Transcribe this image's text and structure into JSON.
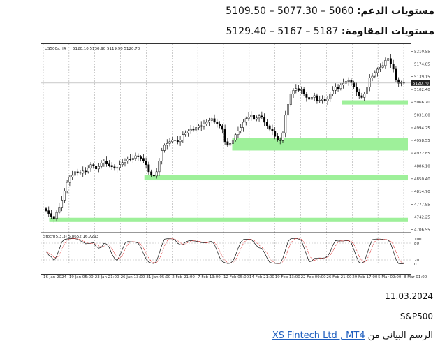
{
  "header": {
    "support_label": "مستويات الدعم:",
    "support_values": "5060 – 5077.30 – 5109.50",
    "resistance_label": "مستويات المقاومة:",
    "resistance_values": "5187 – 5167 – 5129.40"
  },
  "chart_header": {
    "symbol_info": "US500s,H4",
    "ohlc": "5120.10 5130.90 5119.90 5120.70",
    "stoch_label": "Stoch(5,3,3) 5.8652 16.7293"
  },
  "chart_data": {
    "type": "candlestick",
    "title": "",
    "x_ticks": [
      "16 Jan 2024",
      "19 Jan 05:00",
      "23 Jan 21:00",
      "26 Jan 13:00",
      "31 Jan 05:00",
      "2 Feb 21:00",
      "7 Feb 13:00",
      "12 Feb 05:00",
      "14 Feb 21:00",
      "19 Feb 13:00",
      "22 Feb 09:00",
      "26 Feb 21:00",
      "29 Feb 17:00",
      "5 Mar 09:00",
      "8 Mar 01:00"
    ],
    "y_ticks": [
      5210.55,
      5174.85,
      5139.15,
      5102.4,
      5066.7,
      5031.0,
      4994.25,
      4958.55,
      4922.85,
      4886.1,
      4850.4,
      4814.7,
      4777.95,
      4742.25,
      4706.55
    ],
    "current_price": "5120.70",
    "ylim": [
      4700,
      5225
    ],
    "close_series": [
      4760,
      4752,
      4744,
      4738,
      4755,
      4770,
      4790,
      4815,
      4840,
      4855,
      4860,
      4870,
      4868,
      4866,
      4872,
      4870,
      4880,
      4890,
      4886,
      4878,
      4885,
      4895,
      4900,
      4892,
      4888,
      4884,
      4880,
      4882,
      4890,
      4896,
      4900,
      4906,
      4904,
      4908,
      4915,
      4912,
      4908,
      4900,
      4890,
      4870,
      4860,
      4858,
      4870,
      4900,
      4930,
      4945,
      4950,
      4955,
      4960,
      4958,
      4955,
      4960,
      4975,
      4980,
      4985,
      4990,
      4988,
      4995,
      5000,
      4998,
      5005,
      5010,
      5015,
      5020,
      5010,
      5005,
      5000,
      4990,
      4955,
      4945,
      4950,
      4960,
      4975,
      4985,
      4995,
      5010,
      5020,
      5025,
      5030,
      5018,
      5022,
      5028,
      5025,
      5010,
      5000,
      4990,
      4985,
      4970,
      4960,
      4958,
      4980,
      5030,
      5060,
      5090,
      5100,
      5105,
      5100,
      5102,
      5090,
      5080,
      5075,
      5080,
      5085,
      5070,
      5072,
      5075,
      5070,
      5076,
      5090,
      5100,
      5110,
      5105,
      5115,
      5120,
      5125,
      5128,
      5122,
      5110,
      5095,
      5085,
      5080,
      5090,
      5110,
      5135,
      5140,
      5150,
      5160,
      5165,
      5170,
      5185,
      5190,
      5175,
      5160,
      5130,
      5120,
      5122,
      5121
    ],
    "support_zones": [
      [
        5060,
        5072
      ],
      [
        4930,
        4965
      ],
      [
        4846,
        4860
      ],
      [
        4728,
        4740
      ]
    ],
    "stochastic": {
      "name": "Stoch(5,3,3)",
      "main": 5.8652,
      "signal": 16.7293,
      "levels": [
        80,
        20
      ],
      "ylim": [
        0,
        100
      ]
    }
  },
  "footer": {
    "date": "11.03.2024",
    "symbol": "S&P500",
    "source_prefix": "الرسم البياني من",
    "source_link": "XS Fintech Ltd , MT4"
  }
}
